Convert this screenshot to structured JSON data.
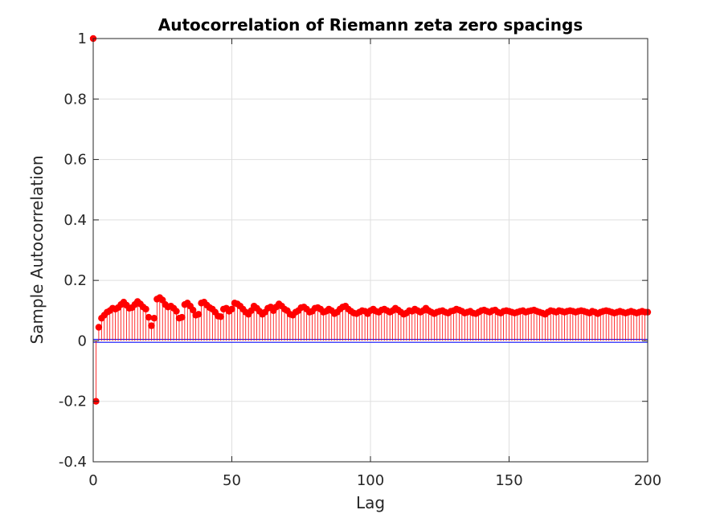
{
  "chart_data": {
    "type": "stem",
    "title": "Autocorrelation of Riemann zeta zero spacings",
    "xlabel": "Lag",
    "ylabel": "Sample Autocorrelation",
    "xlim": [
      0,
      200
    ],
    "ylim": [
      -0.4,
      1
    ],
    "xticks": [
      0,
      50,
      100,
      150,
      200
    ],
    "xtick_labels": [
      "0",
      "50",
      "100",
      "150",
      "200"
    ],
    "yticks": [
      -0.4,
      -0.2,
      0,
      0.2,
      0.4,
      0.6,
      0.8,
      1
    ],
    "ytick_labels": [
      "-0.4",
      "-0.2",
      "0",
      "0.2",
      "0.4",
      "0.6",
      "0.8",
      "1"
    ],
    "grid": true,
    "stem_color": "#ff0000",
    "bound_color": "#0000ff",
    "confidence_bounds": [
      0.005,
      -0.005
    ],
    "x": [
      0,
      1,
      2,
      3,
      4,
      5,
      6,
      7,
      8,
      9,
      10,
      11,
      12,
      13,
      14,
      15,
      16,
      17,
      18,
      19,
      20,
      21,
      22,
      23,
      24,
      25,
      26,
      27,
      28,
      29,
      30,
      31,
      32,
      33,
      34,
      35,
      36,
      37,
      38,
      39,
      40,
      41,
      42,
      43,
      44,
      45,
      46,
      47,
      48,
      49,
      50,
      51,
      52,
      53,
      54,
      55,
      56,
      57,
      58,
      59,
      60,
      61,
      62,
      63,
      64,
      65,
      66,
      67,
      68,
      69,
      70,
      71,
      72,
      73,
      74,
      75,
      76,
      77,
      78,
      79,
      80,
      81,
      82,
      83,
      84,
      85,
      86,
      87,
      88,
      89,
      90,
      91,
      92,
      93,
      94,
      95,
      96,
      97,
      98,
      99,
      100,
      101,
      102,
      103,
      104,
      105,
      106,
      107,
      108,
      109,
      110,
      111,
      112,
      113,
      114,
      115,
      116,
      117,
      118,
      119,
      120,
      121,
      122,
      123,
      124,
      125,
      126,
      127,
      128,
      129,
      130,
      131,
      132,
      133,
      134,
      135,
      136,
      137,
      138,
      139,
      140,
      141,
      142,
      143,
      144,
      145,
      146,
      147,
      148,
      149,
      150,
      151,
      152,
      153,
      154,
      155,
      156,
      157,
      158,
      159,
      160,
      161,
      162,
      163,
      164,
      165,
      166,
      167,
      168,
      169,
      170,
      171,
      172,
      173,
      174,
      175,
      176,
      177,
      178,
      179,
      180,
      181,
      182,
      183,
      184,
      185,
      186,
      187,
      188,
      189,
      190,
      191,
      192,
      193,
      194,
      195,
      196,
      197,
      198,
      199,
      200
    ],
    "values": [
      1.0,
      -0.2,
      0.045,
      0.075,
      0.085,
      0.095,
      0.1,
      0.108,
      0.105,
      0.11,
      0.12,
      0.128,
      0.118,
      0.108,
      0.11,
      0.12,
      0.13,
      0.122,
      0.112,
      0.105,
      0.078,
      0.05,
      0.075,
      0.138,
      0.143,
      0.135,
      0.12,
      0.112,
      0.115,
      0.108,
      0.098,
      0.075,
      0.078,
      0.12,
      0.125,
      0.115,
      0.102,
      0.085,
      0.088,
      0.125,
      0.128,
      0.118,
      0.11,
      0.105,
      0.095,
      0.082,
      0.08,
      0.105,
      0.108,
      0.098,
      0.105,
      0.125,
      0.122,
      0.115,
      0.105,
      0.095,
      0.088,
      0.1,
      0.115,
      0.108,
      0.098,
      0.088,
      0.095,
      0.108,
      0.112,
      0.1,
      0.112,
      0.122,
      0.115,
      0.105,
      0.1,
      0.088,
      0.085,
      0.095,
      0.1,
      0.11,
      0.112,
      0.105,
      0.095,
      0.098,
      0.108,
      0.11,
      0.105,
      0.095,
      0.098,
      0.105,
      0.1,
      0.09,
      0.095,
      0.105,
      0.112,
      0.115,
      0.105,
      0.098,
      0.092,
      0.09,
      0.095,
      0.1,
      0.098,
      0.09,
      0.1,
      0.105,
      0.098,
      0.095,
      0.102,
      0.105,
      0.1,
      0.095,
      0.1,
      0.108,
      0.102,
      0.095,
      0.088,
      0.092,
      0.1,
      0.098,
      0.105,
      0.1,
      0.095,
      0.1,
      0.108,
      0.1,
      0.095,
      0.09,
      0.095,
      0.098,
      0.1,
      0.095,
      0.092,
      0.098,
      0.1,
      0.105,
      0.102,
      0.098,
      0.092,
      0.095,
      0.098,
      0.092,
      0.09,
      0.095,
      0.1,
      0.102,
      0.098,
      0.095,
      0.1,
      0.102,
      0.095,
      0.092,
      0.098,
      0.1,
      0.098,
      0.095,
      0.092,
      0.095,
      0.098,
      0.1,
      0.095,
      0.098,
      0.1,
      0.102,
      0.098,
      0.095,
      0.092,
      0.088,
      0.095,
      0.1,
      0.098,
      0.095,
      0.1,
      0.098,
      0.095,
      0.098,
      0.1,
      0.098,
      0.095,
      0.098,
      0.1,
      0.098,
      0.095,
      0.092,
      0.098,
      0.095,
      0.09,
      0.095,
      0.098,
      0.1,
      0.098,
      0.095,
      0.092,
      0.095,
      0.098,
      0.095,
      0.092,
      0.095,
      0.098,
      0.095,
      0.092,
      0.095,
      0.098,
      0.095,
      0.095
    ]
  }
}
